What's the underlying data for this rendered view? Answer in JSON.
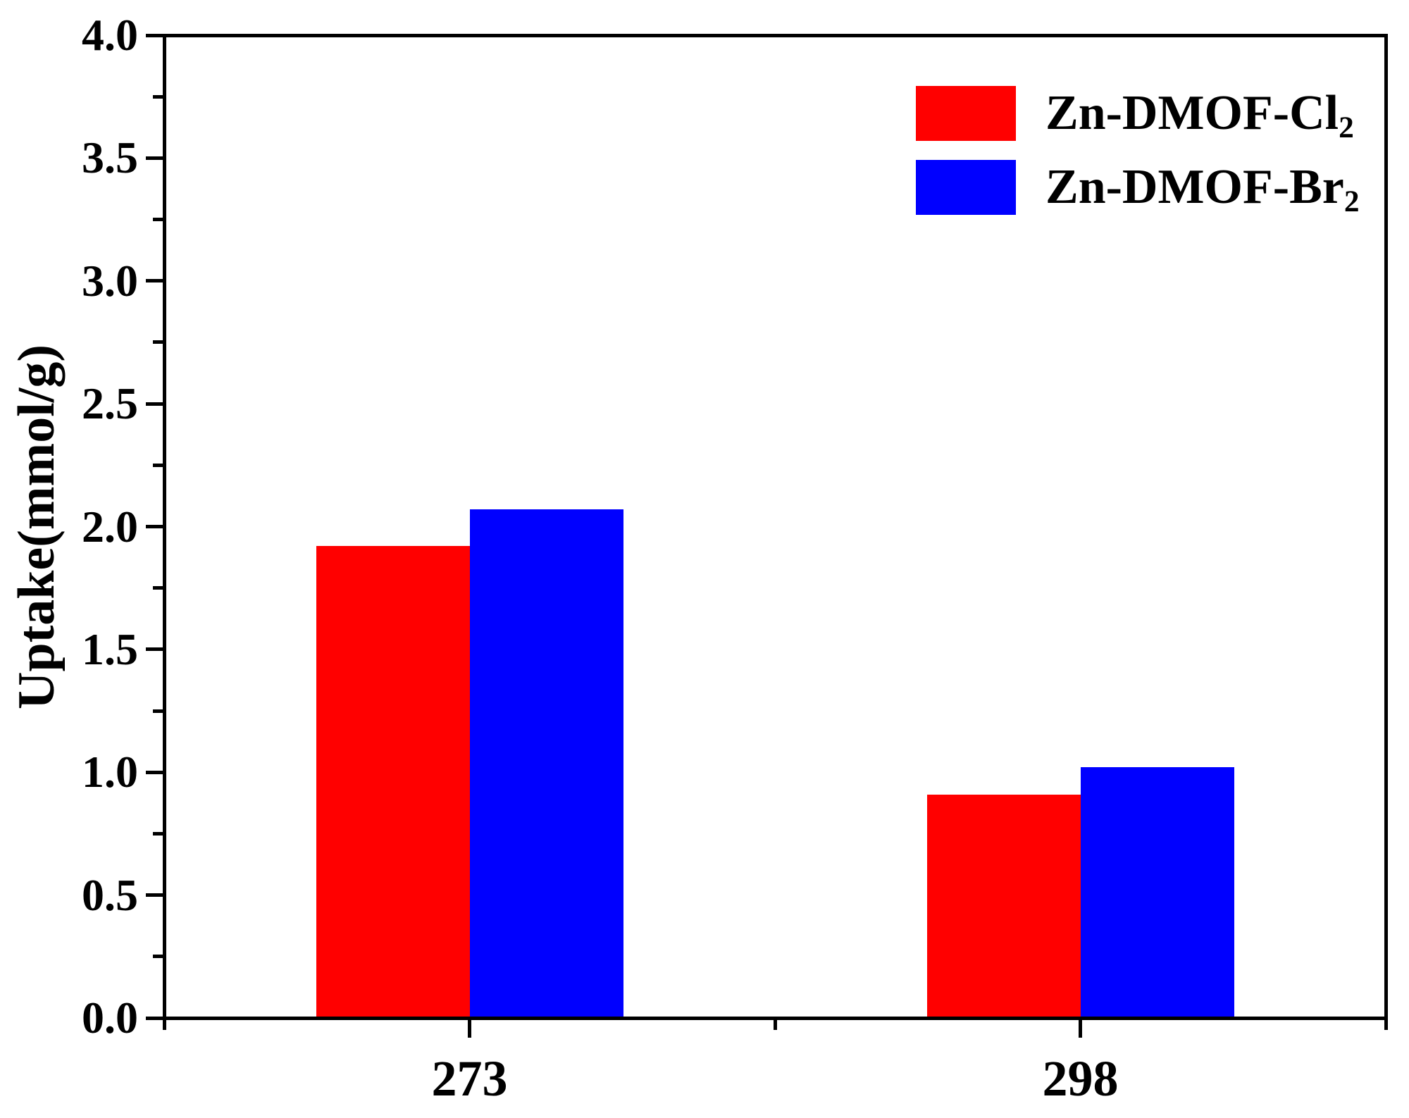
{
  "figure": {
    "background": "#ffffff",
    "axis_color": "#000000"
  },
  "chart_data": {
    "type": "bar",
    "title": "",
    "xlabel": "",
    "ylabel": "Uptake(mmol/g)",
    "categories": [
      "273",
      "298"
    ],
    "series": [
      {
        "name": "Zn-DMOF-Cl2",
        "label_base": "Zn-DMOF-Cl",
        "label_sub": "2",
        "color": "#ff0000",
        "values": [
          1.92,
          0.91
        ]
      },
      {
        "name": "Zn-DMOF-Br2",
        "label_base": "Zn-DMOF-Br",
        "label_sub": "2",
        "color": "#0000ff",
        "values": [
          2.07,
          1.02
        ]
      }
    ],
    "ylim": [
      0,
      4
    ],
    "ytick_step": 0.5,
    "ytick_minor_step": 0.25,
    "ytick_labels": [
      "0.0",
      "0.5",
      "1.0",
      "1.5",
      "2.0",
      "2.5",
      "3.0",
      "3.5",
      "4.0"
    ],
    "grid": false,
    "legend_position": "top-right",
    "bar_layout": "grouped-adjacent-centered-on-tick"
  }
}
